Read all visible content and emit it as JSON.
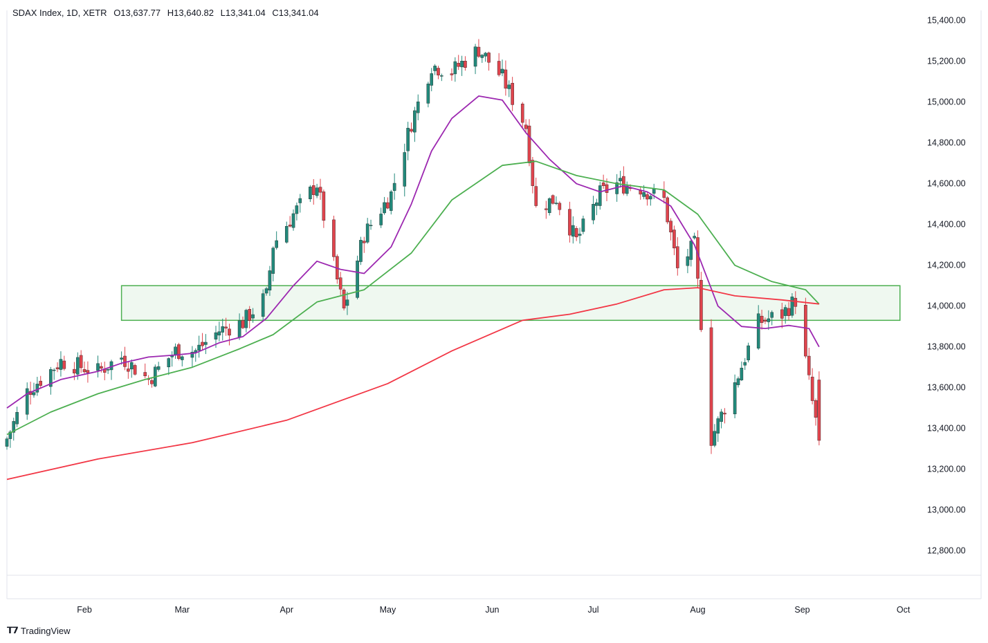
{
  "header": {
    "symbol": "SDAX Index, 1D, XETR",
    "open": "O13,637.77",
    "high": "H13,640.82",
    "low": "L13,341.04",
    "close": "C13,341.04"
  },
  "branding": {
    "name": "TradingView",
    "icon": "tradingview-logo-icon"
  },
  "colors": {
    "up": "#22897b",
    "down": "#e0444d",
    "ma_short": "#9c27b0",
    "ma_mid": "#4caf50",
    "ma_long": "#f23645",
    "zone_fill": "#e8f5e9",
    "zone_stroke": "#4caf50"
  },
  "chart_data": {
    "type": "candlestick",
    "ylim": [
      12680,
      15450
    ],
    "y_ticks": [
      "15,400.00",
      "15,200.00",
      "15,000.00",
      "14,800.00",
      "14,600.00",
      "14,400.00",
      "14,200.00",
      "14,000.00",
      "13,800.00",
      "13,600.00",
      "13,400.00",
      "13,200.00",
      "13,000.00",
      "12,800.00"
    ],
    "x_ticks": [
      {
        "label": "Feb",
        "date": "2024-02-01"
      },
      {
        "label": "Mar",
        "date": "2024-03-01"
      },
      {
        "label": "Apr",
        "date": "2024-04-01"
      },
      {
        "label": "May",
        "date": "2024-05-01"
      },
      {
        "label": "Jun",
        "date": "2024-06-01"
      },
      {
        "label": "Jul",
        "date": "2024-07-01"
      },
      {
        "label": "Aug",
        "date": "2024-08-01"
      },
      {
        "label": "Sep",
        "date": "2024-09-01"
      },
      {
        "label": "Oct",
        "date": "2024-10-01"
      }
    ],
    "x_range": [
      "2024-01-09",
      "2024-10-06"
    ],
    "zone": {
      "x0": "2024-02-12",
      "x1": "2024-09-30",
      "y0": 13930,
      "y1": 14100
    },
    "close_path": [
      [
        "2024-01-09",
        13350
      ],
      [
        "2024-01-15",
        13580
      ],
      [
        "2024-01-25",
        13730
      ],
      [
        "2024-02-05",
        13680
      ],
      [
        "2024-02-12",
        13750
      ],
      [
        "2024-02-20",
        13640
      ],
      [
        "2024-02-28",
        13780
      ],
      [
        "2024-03-05",
        13780
      ],
      [
        "2024-03-12",
        13880
      ],
      [
        "2024-03-19",
        13920
      ],
      [
        "2024-03-26",
        14050
      ],
      [
        "2024-03-28",
        14300
      ],
      [
        "2024-04-03",
        14450
      ],
      [
        "2024-04-10",
        14600
      ],
      [
        "2024-04-15",
        14200
      ],
      [
        "2024-04-18",
        13980
      ],
      [
        "2024-04-24",
        14350
      ],
      [
        "2024-05-02",
        14550
      ],
      [
        "2024-05-08",
        14900
      ],
      [
        "2024-05-14",
        15180
      ],
      [
        "2024-05-20",
        15150
      ],
      [
        "2024-05-28",
        15260
      ],
      [
        "2024-06-04",
        15120
      ],
      [
        "2024-06-11",
        14880
      ],
      [
        "2024-06-14",
        14480
      ],
      [
        "2024-06-20",
        14530
      ],
      [
        "2024-06-26",
        14320
      ],
      [
        "2024-07-03",
        14550
      ],
      [
        "2024-07-08",
        14600
      ],
      [
        "2024-07-15",
        14580
      ],
      [
        "2024-07-22",
        14520
      ],
      [
        "2024-07-26",
        14180
      ],
      [
        "2024-07-31",
        14300
      ],
      [
        "2024-08-05",
        13350
      ],
      [
        "2024-08-12",
        13620
      ],
      [
        "2024-08-19",
        13920
      ],
      [
        "2024-08-26",
        13960
      ],
      [
        "2024-08-30",
        14030
      ],
      [
        "2024-09-04",
        13530
      ],
      [
        "2024-09-06",
        13341
      ]
    ],
    "series": [
      {
        "type": "ma",
        "color": "#9c27b0",
        "points": [
          [
            "2024-01-09",
            13500
          ],
          [
            "2024-01-15",
            13570
          ],
          [
            "2024-01-25",
            13640
          ],
          [
            "2024-02-05",
            13680
          ],
          [
            "2024-02-12",
            13720
          ],
          [
            "2024-02-20",
            13750
          ],
          [
            "2024-02-28",
            13760
          ],
          [
            "2024-03-05",
            13770
          ],
          [
            "2024-03-12",
            13820
          ],
          [
            "2024-03-19",
            13850
          ],
          [
            "2024-03-26",
            13940
          ],
          [
            "2024-04-03",
            14100
          ],
          [
            "2024-04-10",
            14220
          ],
          [
            "2024-04-17",
            14180
          ],
          [
            "2024-04-24",
            14160
          ],
          [
            "2024-05-02",
            14290
          ],
          [
            "2024-05-08",
            14500
          ],
          [
            "2024-05-14",
            14760
          ],
          [
            "2024-05-20",
            14920
          ],
          [
            "2024-05-28",
            15030
          ],
          [
            "2024-06-04",
            15010
          ],
          [
            "2024-06-11",
            14850
          ],
          [
            "2024-06-18",
            14720
          ],
          [
            "2024-06-26",
            14600
          ],
          [
            "2024-07-03",
            14560
          ],
          [
            "2024-07-10",
            14590
          ],
          [
            "2024-07-17",
            14560
          ],
          [
            "2024-07-24",
            14490
          ],
          [
            "2024-07-31",
            14300
          ],
          [
            "2024-08-07",
            14000
          ],
          [
            "2024-08-14",
            13900
          ],
          [
            "2024-08-21",
            13890
          ],
          [
            "2024-08-28",
            13905
          ],
          [
            "2024-09-03",
            13890
          ],
          [
            "2024-09-06",
            13800
          ]
        ]
      },
      {
        "type": "ma",
        "color": "#4caf50",
        "points": [
          [
            "2024-01-09",
            13370
          ],
          [
            "2024-01-22",
            13480
          ],
          [
            "2024-02-05",
            13570
          ],
          [
            "2024-02-19",
            13640
          ],
          [
            "2024-03-04",
            13700
          ],
          [
            "2024-03-18",
            13790
          ],
          [
            "2024-03-28",
            13860
          ],
          [
            "2024-04-10",
            14020
          ],
          [
            "2024-04-24",
            14080
          ],
          [
            "2024-05-08",
            14260
          ],
          [
            "2024-05-20",
            14520
          ],
          [
            "2024-06-04",
            14690
          ],
          [
            "2024-06-14",
            14710
          ],
          [
            "2024-06-26",
            14640
          ],
          [
            "2024-07-08",
            14600
          ],
          [
            "2024-07-22",
            14570
          ],
          [
            "2024-08-01",
            14450
          ],
          [
            "2024-08-12",
            14200
          ],
          [
            "2024-08-23",
            14120
          ],
          [
            "2024-09-02",
            14080
          ],
          [
            "2024-09-06",
            14010
          ]
        ]
      },
      {
        "type": "ma",
        "color": "#f23645",
        "points": [
          [
            "2024-01-09",
            13150
          ],
          [
            "2024-02-05",
            13250
          ],
          [
            "2024-03-04",
            13330
          ],
          [
            "2024-04-01",
            13440
          ],
          [
            "2024-05-01",
            13620
          ],
          [
            "2024-05-20",
            13780
          ],
          [
            "2024-06-10",
            13930
          ],
          [
            "2024-06-24",
            13960
          ],
          [
            "2024-07-08",
            14010
          ],
          [
            "2024-07-22",
            14080
          ],
          [
            "2024-08-01",
            14090
          ],
          [
            "2024-08-12",
            14050
          ],
          [
            "2024-08-26",
            14030
          ],
          [
            "2024-09-06",
            14010
          ]
        ]
      }
    ],
    "candles_note": "",
    "last_close": 13341.04
  }
}
